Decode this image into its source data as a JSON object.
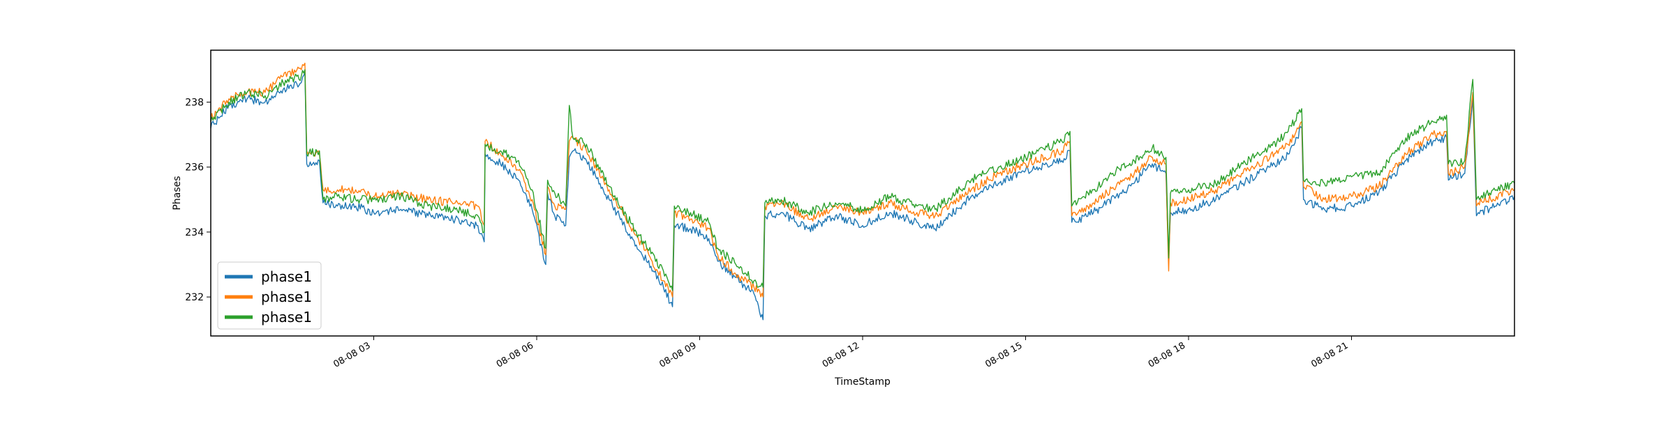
{
  "chart_data": {
    "type": "line",
    "title": "",
    "xlabel": "TimeStamp",
    "ylabel": "Phases",
    "xlim": [
      "2016-08-08 00:00",
      "2016-08-09 00:00"
    ],
    "ylim": [
      230.8,
      239.6
    ],
    "grid": false,
    "legend_position": "lower-left",
    "x_ticks": [
      "2016-08-08 03:00",
      "2016-08-08 06:00",
      "2016-08-08 09:00",
      "2016-08-08 12:00",
      "2016-08-08 15:00",
      "2016-08-08 18:00",
      "2016-08-08 21:00"
    ],
    "x_tick_labels": [
      "08-08 03",
      "08-08 06",
      "08-08 09",
      "08-08 12",
      "08-08 15",
      "08-08 18",
      "08-08 21"
    ],
    "y_ticks": [
      232,
      234,
      236,
      238
    ],
    "y_tick_labels": [
      "232",
      "234",
      "236",
      "238"
    ],
    "x": [
      "2016-08-08 00:00",
      "2016-08-08 00:20",
      "2016-08-08 00:40",
      "2016-08-08 01:00",
      "2016-08-08 01:20",
      "2016-08-08 01:40",
      "2016-08-08 01:44",
      "2016-08-08 01:46",
      "2016-08-08 02:00",
      "2016-08-08 02:04",
      "2016-08-08 02:20",
      "2016-08-08 02:40",
      "2016-08-08 03:00",
      "2016-08-08 03:30",
      "2016-08-08 04:00",
      "2016-08-08 04:30",
      "2016-08-08 04:55",
      "2016-08-08 05:02",
      "2016-08-08 05:03",
      "2016-08-08 05:20",
      "2016-08-08 05:40",
      "2016-08-08 05:55",
      "2016-08-08 06:10",
      "2016-08-08 06:12",
      "2016-08-08 06:20",
      "2016-08-08 06:32",
      "2016-08-08 06:36",
      "2016-08-08 06:40",
      "2016-08-08 06:55",
      "2016-08-08 07:20",
      "2016-08-08 07:50",
      "2016-08-08 08:20",
      "2016-08-08 08:30",
      "2016-08-08 08:32",
      "2016-08-08 08:50",
      "2016-08-08 09:10",
      "2016-08-08 09:20",
      "2016-08-08 09:40",
      "2016-08-08 10:00",
      "2016-08-08 10:10",
      "2016-08-08 10:12",
      "2016-08-08 10:30",
      "2016-08-08 11:00",
      "2016-08-08 11:30",
      "2016-08-08 12:00",
      "2016-08-08 12:30",
      "2016-08-08 13:00",
      "2016-08-08 13:20",
      "2016-08-08 14:00",
      "2016-08-08 14:30",
      "2016-08-08 15:00",
      "2016-08-08 15:40",
      "2016-08-08 15:49",
      "2016-08-08 15:51",
      "2016-08-08 16:15",
      "2016-08-08 16:40",
      "2016-08-08 17:00",
      "2016-08-08 17:15",
      "2016-08-08 17:20",
      "2016-08-08 17:35",
      "2016-08-08 17:38",
      "2016-08-08 17:40",
      "2016-08-08 18:00",
      "2016-08-08 18:30",
      "2016-08-08 19:00",
      "2016-08-08 19:30",
      "2016-08-08 19:50",
      "2016-08-08 20:05",
      "2016-08-08 20:07",
      "2016-08-08 20:30",
      "2016-08-08 21:00",
      "2016-08-08 21:30",
      "2016-08-08 22:00",
      "2016-08-08 22:30",
      "2016-08-08 22:45",
      "2016-08-08 22:47",
      "2016-08-08 23:05",
      "2016-08-08 23:14",
      "2016-08-08 23:18",
      "2016-08-08 23:20",
      "2016-08-08 23:40",
      "2016-08-09 00:00"
    ],
    "series": [
      {
        "name": "phase1",
        "color": "#1f77b4",
        "values": [
          237.2,
          237.9,
          238.1,
          238.0,
          238.4,
          238.6,
          238.9,
          236.1,
          236.2,
          234.9,
          234.8,
          234.8,
          234.6,
          234.7,
          234.5,
          234.4,
          234.2,
          233.7,
          236.4,
          236.1,
          235.6,
          234.7,
          233.0,
          235.2,
          234.5,
          234.2,
          236.3,
          236.5,
          236.2,
          235.0,
          233.6,
          232.3,
          231.7,
          234.2,
          234.1,
          233.8,
          233.1,
          232.6,
          232.1,
          231.3,
          234.5,
          234.6,
          234.1,
          234.5,
          234.2,
          234.6,
          234.3,
          234.1,
          235.1,
          235.5,
          235.9,
          236.2,
          236.5,
          234.3,
          234.6,
          235.1,
          235.5,
          236.0,
          236.1,
          235.8,
          233.2,
          234.6,
          234.7,
          235.0,
          235.5,
          236.0,
          236.4,
          237.2,
          235.0,
          234.7,
          234.8,
          235.2,
          236.2,
          236.8,
          236.9,
          235.6,
          235.8,
          238.1,
          234.5,
          234.6,
          234.8,
          235.1
        ]
      },
      {
        "name": "phase1",
        "color": "#ff7f0e",
        "values": [
          237.5,
          238.1,
          238.3,
          238.3,
          238.8,
          239.0,
          239.2,
          236.5,
          236.4,
          235.3,
          235.3,
          235.3,
          235.1,
          235.2,
          235.0,
          234.9,
          234.8,
          234.2,
          236.8,
          236.4,
          235.9,
          235.0,
          233.3,
          235.4,
          234.8,
          234.7,
          236.8,
          236.9,
          236.5,
          235.3,
          233.9,
          232.5,
          232.0,
          234.6,
          234.4,
          234.1,
          233.3,
          232.7,
          232.3,
          232.0,
          234.8,
          234.9,
          234.4,
          234.8,
          234.6,
          234.9,
          234.6,
          234.5,
          235.3,
          235.8,
          236.1,
          236.5,
          236.8,
          234.5,
          234.9,
          235.4,
          235.8,
          236.2,
          236.3,
          236.1,
          232.8,
          234.9,
          235.0,
          235.3,
          235.8,
          236.3,
          236.7,
          237.4,
          235.4,
          235.0,
          235.1,
          235.4,
          236.4,
          237.0,
          237.1,
          235.8,
          236.0,
          238.3,
          234.8,
          234.9,
          235.1,
          235.3
        ]
      },
      {
        "name": "phase1",
        "color": "#2ca02c",
        "values": [
          237.4,
          238.0,
          238.3,
          238.2,
          238.6,
          238.8,
          239.0,
          236.4,
          236.5,
          235.0,
          235.1,
          235.0,
          235.0,
          235.1,
          234.8,
          234.7,
          234.5,
          234.0,
          236.7,
          236.5,
          236.2,
          235.3,
          233.5,
          235.6,
          235.2,
          234.8,
          237.9,
          236.9,
          236.7,
          235.4,
          234.0,
          232.8,
          232.2,
          234.8,
          234.6,
          234.3,
          233.5,
          233.0,
          232.5,
          232.3,
          234.9,
          235.0,
          234.6,
          234.9,
          234.7,
          235.1,
          234.8,
          234.7,
          235.6,
          236.0,
          236.3,
          236.8,
          237.1,
          234.8,
          235.3,
          235.9,
          236.2,
          236.5,
          236.6,
          236.3,
          233.2,
          235.2,
          235.3,
          235.5,
          236.1,
          236.6,
          237.1,
          237.8,
          235.6,
          235.5,
          235.7,
          235.8,
          236.9,
          237.4,
          237.6,
          236.1,
          236.2,
          238.7,
          235.0,
          235.1,
          235.3,
          235.5
        ]
      }
    ],
    "legend": [
      "phase1",
      "phase1",
      "phase1"
    ]
  }
}
